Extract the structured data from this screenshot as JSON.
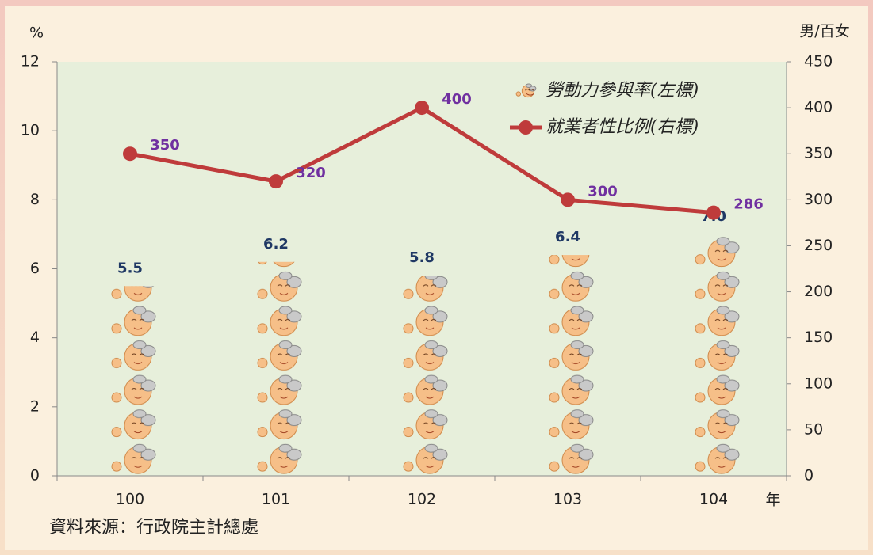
{
  "chart_data": {
    "type": "bar",
    "y_label": "%",
    "y2_label": "男/百女",
    "x_label": "年",
    "source": "資料來源：行政院主計總處",
    "categories": [
      "100",
      "101",
      "102",
      "103",
      "104"
    ],
    "series": [
      {
        "name": "勞動力參與率(左標)",
        "type": "bar",
        "color": "#f6bf88",
        "values": [
          5.5,
          6.2,
          5.8,
          6.4,
          7.0
        ],
        "value_labels": [
          "5.5",
          "6.2",
          "5.8",
          "6.4",
          "7.0"
        ]
      },
      {
        "name": "就業者性比例(右標)",
        "type": "line",
        "axis": "y2",
        "color": "#bf3b3b",
        "values": [
          350,
          320,
          400,
          300,
          286
        ]
      }
    ],
    "ylim": [
      0,
      12
    ],
    "yticks": [
      0,
      2,
      4,
      6,
      8,
      10,
      12
    ],
    "y2lim": [
      0,
      450
    ],
    "y2ticks": [
      0,
      50,
      100,
      150,
      200,
      250,
      300,
      350,
      400,
      450
    ],
    "legend": "top-right"
  }
}
